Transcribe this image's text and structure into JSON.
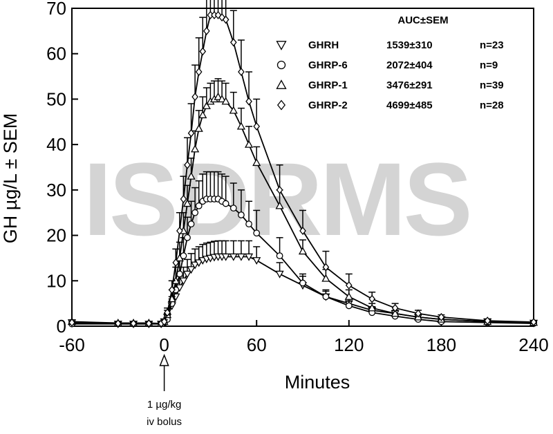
{
  "watermark": "ISDRMS",
  "chart_data": {
    "type": "line",
    "xlabel": "Minutes",
    "ylabel": "GH µg/L ± SEM",
    "xlim": [
      -60,
      240
    ],
    "ylim": [
      0,
      70
    ],
    "xticks": [
      -60,
      0,
      60,
      120,
      180,
      240
    ],
    "yticks": [
      0,
      10,
      20,
      30,
      40,
      50,
      60,
      70
    ],
    "grid": false,
    "legend_position": "top-right",
    "legend_header": "AUC±SEM",
    "annotation": {
      "x": 0,
      "lines": [
        "1 µg/kg",
        "iv bolus"
      ]
    },
    "series": [
      {
        "name": "GHRH",
        "marker": "triangle-down",
        "auc": "1539±310",
        "n": "n=23",
        "x": [
          -60,
          -30,
          -20,
          -10,
          -2,
          0,
          2,
          5,
          7.5,
          10,
          12.5,
          15,
          17.5,
          20,
          22.5,
          25,
          27.5,
          30,
          32.5,
          35,
          37.5,
          40,
          45,
          50,
          55,
          60,
          75,
          90,
          105,
          120,
          135,
          150,
          165,
          180,
          210,
          240
        ],
        "y": [
          0.8,
          0.5,
          0.5,
          0.5,
          0.5,
          1.0,
          2.0,
          4.5,
          6.5,
          8.5,
          10.0,
          11.5,
          12.5,
          13.5,
          14.0,
          14.5,
          14.8,
          15.0,
          15.2,
          15.3,
          15.3,
          15.3,
          15.3,
          15.3,
          15.3,
          14.5,
          11.5,
          9.0,
          6.5,
          5.0,
          3.5,
          2.8,
          2.0,
          1.5,
          1.0,
          0.7
        ],
        "sem": [
          0.3,
          0.2,
          0.2,
          0.2,
          0.2,
          0.4,
          0.8,
          1.5,
          2.0,
          2.5,
          3.0,
          3.2,
          3.5,
          3.5,
          3.5,
          3.5,
          3.5,
          3.5,
          3.5,
          3.5,
          3.5,
          3.5,
          3.5,
          3.5,
          3.5,
          3.0,
          2.5,
          2.0,
          1.5,
          1.0,
          0.8,
          0.6,
          0.5,
          0.4,
          0.3,
          0.2
        ]
      },
      {
        "name": "GHRP-6",
        "marker": "circle",
        "auc": "2072±404",
        "n": "n=9",
        "x": [
          -60,
          -30,
          -20,
          -10,
          -2,
          0,
          2,
          5,
          7.5,
          10,
          12.5,
          15,
          17.5,
          20,
          22.5,
          25,
          27.5,
          30,
          32.5,
          35,
          37.5,
          40,
          45,
          50,
          55,
          60,
          75,
          90,
          105,
          120,
          135,
          150,
          165,
          180,
          210,
          240
        ],
        "y": [
          0.5,
          0.5,
          0.5,
          0.5,
          0.5,
          0.8,
          1.5,
          5.0,
          8.0,
          11.5,
          15.5,
          19.5,
          22.5,
          25.0,
          26.5,
          27.5,
          28.0,
          28.0,
          28.0,
          28.0,
          27.5,
          27.0,
          26.0,
          24.5,
          22.5,
          20.5,
          15.5,
          9.5,
          6.5,
          4.5,
          3.0,
          2.2,
          1.5,
          1.0,
          0.8,
          0.6
        ],
        "sem": [
          0.2,
          0.2,
          0.2,
          0.2,
          0.2,
          0.3,
          0.6,
          1.5,
          2.0,
          3.0,
          4.0,
          4.5,
          5.0,
          5.5,
          5.5,
          6.0,
          6.0,
          6.0,
          6.0,
          6.0,
          6.0,
          6.0,
          5.5,
          5.5,
          5.0,
          5.0,
          4.0,
          2.0,
          1.2,
          1.0,
          0.7,
          0.5,
          0.4,
          0.3,
          0.2,
          0.2
        ]
      },
      {
        "name": "GHRP-1",
        "marker": "triangle-up",
        "auc": "3476±291",
        "n": "n=39",
        "x": [
          -60,
          -30,
          -20,
          -10,
          -2,
          0,
          2,
          5,
          7.5,
          10,
          12.5,
          15,
          17.5,
          20,
          22.5,
          25,
          27.5,
          30,
          32.5,
          35,
          37.5,
          40,
          45,
          50,
          55,
          60,
          75,
          90,
          105,
          120,
          135,
          150,
          165,
          180,
          210,
          240
        ],
        "y": [
          1.0,
          0.7,
          0.7,
          0.7,
          0.6,
          1.0,
          2.5,
          6.0,
          10.0,
          15.0,
          21.0,
          27.0,
          33.0,
          39.0,
          43.5,
          46.5,
          48.5,
          49.5,
          50.0,
          50.5,
          50.0,
          49.5,
          47.5,
          44.0,
          40.0,
          36.0,
          26.5,
          16.5,
          10.5,
          6.5,
          4.0,
          2.8,
          2.0,
          1.5,
          1.0,
          0.8
        ],
        "sem": [
          0.4,
          0.3,
          0.3,
          0.3,
          0.3,
          0.4,
          1.0,
          2.0,
          3.0,
          3.5,
          4.0,
          4.0,
          4.0,
          4.0,
          4.0,
          4.0,
          4.0,
          4.0,
          4.0,
          4.0,
          4.0,
          4.0,
          4.0,
          4.0,
          4.0,
          3.5,
          3.5,
          2.5,
          2.0,
          1.5,
          1.0,
          0.7,
          0.5,
          0.4,
          0.3,
          0.2
        ]
      },
      {
        "name": "GHRP-2",
        "marker": "diamond",
        "auc": "4699±485",
        "n": "n=28",
        "x": [
          -60,
          -30,
          -20,
          -10,
          -2,
          0,
          2,
          5,
          7.5,
          10,
          12.5,
          15,
          17.5,
          20,
          22.5,
          25,
          27.5,
          30,
          32.5,
          35,
          37.5,
          40,
          45,
          50,
          55,
          60,
          75,
          90,
          105,
          120,
          135,
          150,
          165,
          180,
          210,
          240
        ],
        "y": [
          0.8,
          0.6,
          0.6,
          0.6,
          0.6,
          1.0,
          3.0,
          8.0,
          14.0,
          21.0,
          28.0,
          35.5,
          42.5,
          50.5,
          56.0,
          60.5,
          65.0,
          68.5,
          68.5,
          68.5,
          68.0,
          67.5,
          62.5,
          56.0,
          49.5,
          44.0,
          30.0,
          21.0,
          13.0,
          9.0,
          6.0,
          4.0,
          2.8,
          2.0,
          1.2,
          0.9
        ],
        "sem": [
          0.3,
          0.2,
          0.2,
          0.2,
          0.2,
          0.4,
          1.0,
          2.0,
          3.0,
          4.0,
          5.0,
          6.0,
          6.5,
          7.0,
          7.5,
          7.5,
          7.5,
          7.5,
          7.5,
          7.5,
          7.5,
          7.5,
          7.0,
          7.0,
          6.5,
          6.0,
          5.5,
          4.5,
          3.5,
          2.5,
          1.5,
          1.0,
          0.7,
          0.5,
          0.4,
          0.3
        ]
      }
    ]
  }
}
